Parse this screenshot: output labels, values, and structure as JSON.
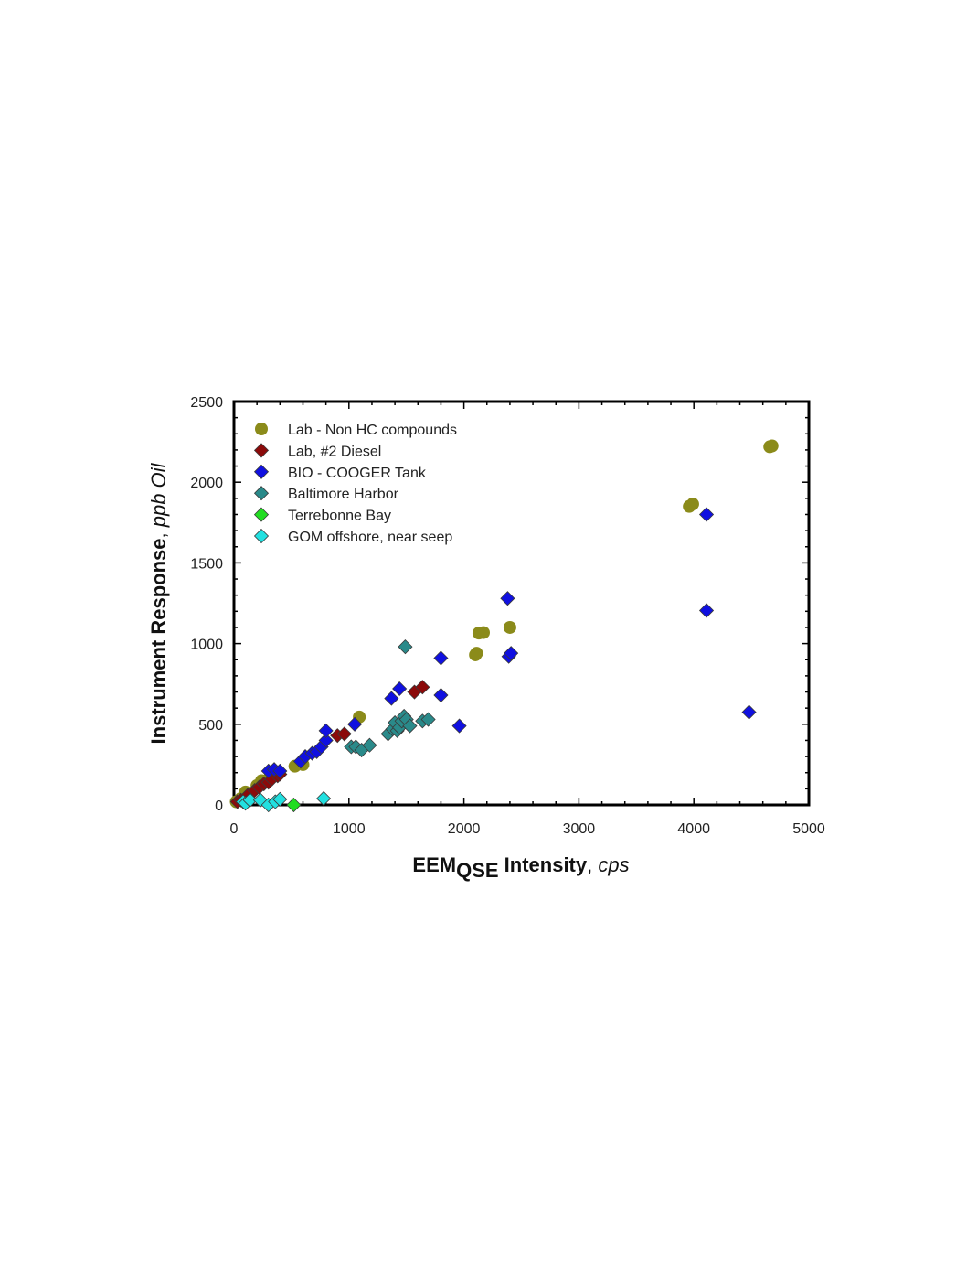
{
  "chart_data": {
    "type": "scatter",
    "xlabel": {
      "main": "EEM",
      "sub": "QSE",
      "rest": " Intensity",
      "sep": ", ",
      "unit": "cps"
    },
    "ylabel": {
      "main": "Instrument Response",
      "sep": ", ",
      "unit": "ppb Oil"
    },
    "xlim": [
      0,
      5000
    ],
    "ylim": [
      0,
      2500
    ],
    "x_ticks": [
      0,
      1000,
      2000,
      3000,
      4000,
      5000
    ],
    "y_ticks": [
      0,
      500,
      1000,
      1500,
      2000,
      2500
    ],
    "grid": false,
    "legend_position": "top-left",
    "series": [
      {
        "name": "Lab - Non HC compounds",
        "marker": "circle",
        "color": "#8b8b1a",
        "points": [
          [
            20,
            20
          ],
          [
            60,
            40
          ],
          [
            100,
            80
          ],
          [
            130,
            70
          ],
          [
            200,
            120
          ],
          [
            240,
            150
          ],
          [
            300,
            160
          ],
          [
            340,
            180
          ],
          [
            530,
            240
          ],
          [
            600,
            250
          ],
          [
            1090,
            545
          ],
          [
            2100,
            930
          ],
          [
            2110,
            940
          ],
          [
            2130,
            1065
          ],
          [
            2170,
            1068
          ],
          [
            2400,
            1100
          ],
          [
            3960,
            1850
          ],
          [
            3990,
            1865
          ],
          [
            4660,
            2220
          ],
          [
            4680,
            2225
          ]
        ]
      },
      {
        "name": "Lab, #2 Diesel",
        "marker": "diamond",
        "color": "#8b0a0a",
        "points": [
          [
            30,
            20
          ],
          [
            60,
            30
          ],
          [
            120,
            60
          ],
          [
            180,
            90
          ],
          [
            220,
            110
          ],
          [
            260,
            130
          ],
          [
            300,
            140
          ],
          [
            330,
            160
          ],
          [
            380,
            180
          ],
          [
            400,
            190
          ],
          [
            900,
            430
          ],
          [
            960,
            440
          ],
          [
            1570,
            700
          ],
          [
            1640,
            730
          ]
        ]
      },
      {
        "name": "BIO - COOGER Tank",
        "marker": "diamond",
        "color": "#1010e0",
        "points": [
          [
            300,
            210
          ],
          [
            350,
            220
          ],
          [
            400,
            210
          ],
          [
            580,
            270
          ],
          [
            620,
            300
          ],
          [
            680,
            320
          ],
          [
            720,
            330
          ],
          [
            760,
            360
          ],
          [
            800,
            400
          ],
          [
            800,
            460
          ],
          [
            1050,
            500
          ],
          [
            1370,
            660
          ],
          [
            1440,
            720
          ],
          [
            1800,
            680
          ],
          [
            1800,
            910
          ],
          [
            1960,
            490
          ],
          [
            2380,
            1280
          ],
          [
            2390,
            920
          ],
          [
            2410,
            940
          ],
          [
            4110,
            1800
          ],
          [
            4110,
            1205
          ],
          [
            4480,
            575
          ]
        ]
      },
      {
        "name": "Baltimore Harbor",
        "marker": "diamond",
        "color": "#2a8a8a",
        "points": [
          [
            100,
            10
          ],
          [
            1020,
            360
          ],
          [
            1060,
            360
          ],
          [
            1110,
            340
          ],
          [
            1180,
            370
          ],
          [
            1340,
            440
          ],
          [
            1380,
            470
          ],
          [
            1400,
            510
          ],
          [
            1420,
            460
          ],
          [
            1440,
            480
          ],
          [
            1460,
            520
          ],
          [
            1480,
            550
          ],
          [
            1490,
            980
          ],
          [
            1500,
            530
          ],
          [
            1530,
            490
          ],
          [
            1640,
            520
          ],
          [
            1690,
            530
          ]
        ]
      },
      {
        "name": "Terrebonne Bay",
        "marker": "diamond",
        "color": "#22dd22",
        "points": [
          [
            520,
            0
          ]
        ]
      },
      {
        "name": "GOM offshore, near seep",
        "marker": "diamond",
        "color": "#22e0e0",
        "points": [
          [
            80,
            20
          ],
          [
            100,
            10
          ],
          [
            140,
            30
          ],
          [
            230,
            30
          ],
          [
            300,
            0
          ],
          [
            360,
            20
          ],
          [
            400,
            35
          ],
          [
            780,
            40
          ]
        ]
      }
    ]
  }
}
